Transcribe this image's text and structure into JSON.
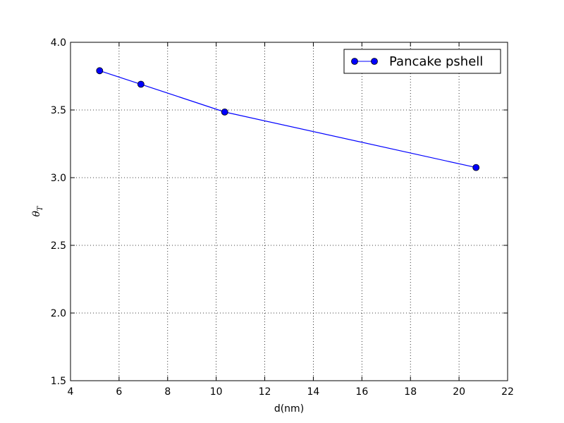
{
  "chart_data": {
    "type": "line",
    "xlabel": "d(nm)",
    "ylabel": {
      "main": "θ",
      "sub": "T"
    },
    "xlim": [
      4,
      22
    ],
    "ylim": [
      1.5,
      4.0
    ],
    "xticks": [
      "4",
      "6",
      "8",
      "10",
      "12",
      "14",
      "16",
      "18",
      "20",
      "22"
    ],
    "yticks": [
      "1.5",
      "2.0",
      "2.5",
      "3.0",
      "3.5",
      "4.0"
    ],
    "grid": true,
    "legend": {
      "position": "top-right"
    },
    "series": [
      {
        "name": "Pancake pshell",
        "color": "#0000ff",
        "marker": "circle",
        "x": [
          5.2,
          6.9,
          10.35,
          20.7
        ],
        "y": [
          3.79,
          3.69,
          3.485,
          3.075
        ]
      }
    ]
  }
}
